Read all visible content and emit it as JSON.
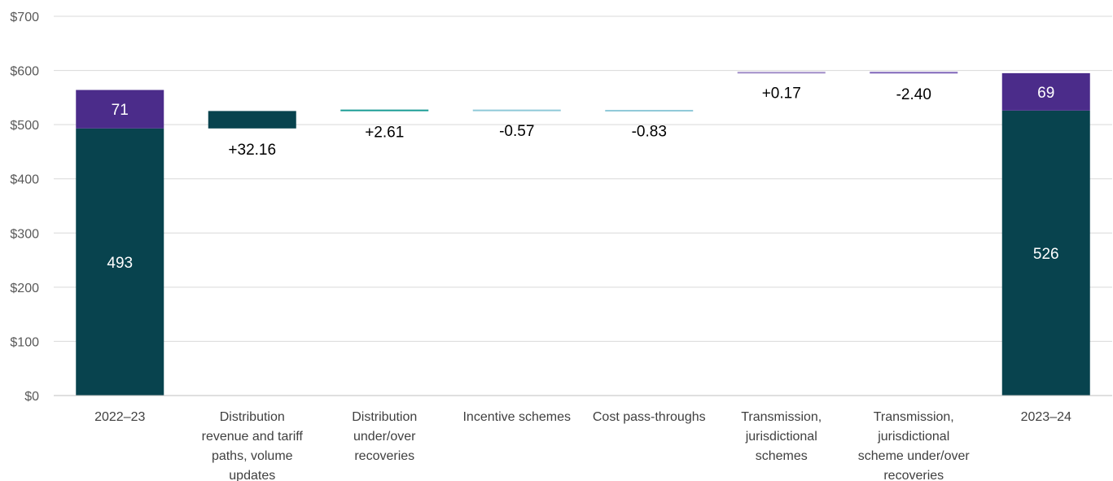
{
  "chart_data": {
    "type": "bar",
    "subtype": "waterfall",
    "title": "",
    "xlabel": "",
    "ylabel": "",
    "ylim": [
      0,
      700
    ],
    "y_ticks": [
      0,
      100,
      200,
      300,
      400,
      500,
      600,
      700
    ],
    "y_tick_labels": [
      "$0",
      "$100",
      "$200",
      "$300",
      "$400",
      "$500",
      "$600",
      "$700"
    ],
    "grid": true,
    "legend": "none",
    "categories": [
      [
        "2022–23"
      ],
      [
        "Distribution",
        "revenue and tariff",
        "paths, volume",
        "updates"
      ],
      [
        "Distribution",
        "under/over",
        "recoveries"
      ],
      [
        "Incentive schemes"
      ],
      [
        "Cost pass-throughs"
      ],
      [
        "Transmission,",
        "jurisdictional",
        "schemes"
      ],
      [
        "Transmission,",
        "jurisdictional",
        "scheme under/over",
        "recoveries"
      ],
      [
        "2023–24"
      ]
    ],
    "totals": [
      {
        "category_index": 0,
        "segments": [
          {
            "value": 493,
            "label": "493",
            "color": "#08434E"
          },
          {
            "value": 71,
            "label": "71",
            "color": "#4B2C8A"
          }
        ]
      },
      {
        "category_index": 7,
        "segments": [
          {
            "value": 526,
            "label": "526",
            "color": "#08434E"
          },
          {
            "value": 69,
            "label": "69",
            "color": "#4B2C8A"
          }
        ]
      }
    ],
    "changes": [
      {
        "category_index": 1,
        "base": 493,
        "value": 32.16,
        "label": "+32.16",
        "color": "#08434E"
      },
      {
        "category_index": 2,
        "base": 525.16,
        "value": 2.61,
        "label": "+2.61",
        "color": "#1A9C95"
      },
      {
        "category_index": 3,
        "base": 527.77,
        "value": -0.57,
        "label": "-0.57",
        "color": "#8FC9D8"
      },
      {
        "category_index": 4,
        "base": 527.2,
        "value": -0.83,
        "label": "-0.83",
        "color": "#8FC9D8"
      },
      {
        "category_index": 5,
        "base": 597.23,
        "value": 0.17,
        "label": "+0.17",
        "color": "#9F8CC8"
      },
      {
        "category_index": 6,
        "base": 597.4,
        "value": -2.4,
        "label": "-2.40",
        "color": "#7E64B8"
      }
    ],
    "colors": {
      "grid": "#D9D9D9",
      "axis": "#BFBFBF"
    }
  }
}
